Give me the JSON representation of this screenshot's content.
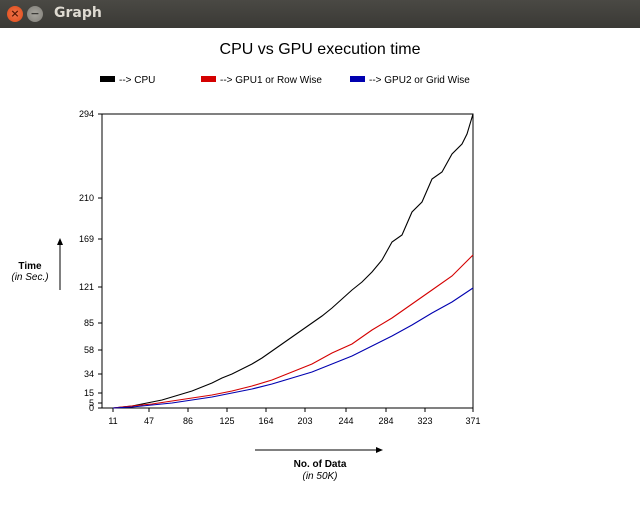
{
  "window": {
    "title": "Graph",
    "close_icon": "close-icon",
    "minimize_icon": "minimize-icon"
  },
  "chart_data": {
    "type": "line",
    "title": "CPU vs GPU execution time",
    "ylabel": "Time",
    "ylabel_unit": "(in Sec.)",
    "xlabel": "No. of Data",
    "xlabel_unit": "(in 50K)",
    "xlim": [
      0,
      371
    ],
    "ylim": [
      0,
      294
    ],
    "x_ticks": [
      11,
      47,
      86,
      125,
      164,
      203,
      244,
      284,
      323,
      371
    ],
    "y_ticks": [
      0,
      5,
      15,
      34,
      58,
      85,
      121,
      169,
      210,
      294
    ],
    "legend_placement": "top",
    "grid": false,
    "series": [
      {
        "name": "--> CPU",
        "color": "#000000",
        "x": [
          11,
          20,
          30,
          40,
          50,
          60,
          70,
          80,
          90,
          100,
          110,
          120,
          130,
          140,
          150,
          160,
          170,
          180,
          190,
          200,
          210,
          220,
          230,
          240,
          250,
          260,
          270,
          280,
          290,
          300,
          310,
          320,
          330,
          340,
          350,
          360,
          365,
          371
        ],
        "y": [
          0,
          1,
          2,
          4,
          6,
          8,
          11,
          14,
          17,
          21,
          25,
          30,
          34,
          39,
          44,
          50,
          57,
          64,
          71,
          78,
          85,
          92,
          100,
          109,
          118,
          126,
          136,
          148,
          166,
          173,
          196,
          206,
          229,
          236,
          254,
          264,
          274,
          294
        ]
      },
      {
        "name": "--> GPU1 or Row Wise",
        "color": "#d40000",
        "x": [
          11,
          30,
          50,
          70,
          90,
          110,
          130,
          150,
          170,
          190,
          210,
          230,
          250,
          270,
          290,
          310,
          330,
          350,
          371
        ],
        "y": [
          0,
          2,
          4,
          7,
          10,
          13,
          17,
          22,
          28,
          36,
          44,
          55,
          64,
          78,
          90,
          104,
          118,
          132,
          153
        ]
      },
      {
        "name": "--> GPU2 or Grid Wise",
        "color": "#0000b0",
        "x": [
          11,
          30,
          50,
          70,
          90,
          110,
          130,
          150,
          170,
          190,
          210,
          230,
          250,
          270,
          290,
          310,
          330,
          350,
          371
        ],
        "y": [
          0,
          1,
          3,
          5,
          8,
          11,
          15,
          19,
          24,
          30,
          36,
          44,
          52,
          62,
          72,
          83,
          95,
          106,
          120
        ]
      }
    ]
  }
}
